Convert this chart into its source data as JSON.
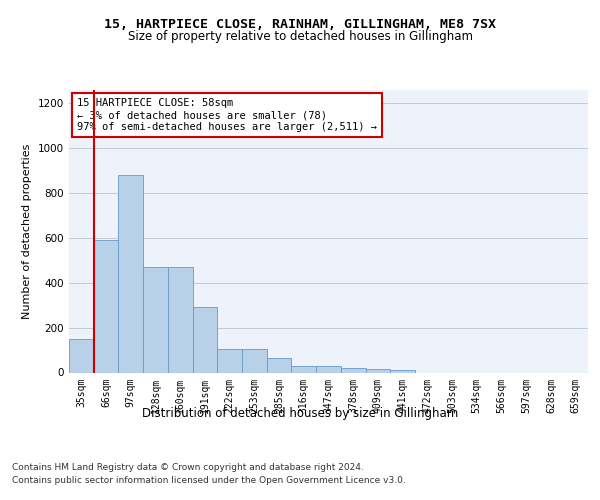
{
  "title1": "15, HARTPIECE CLOSE, RAINHAM, GILLINGHAM, ME8 7SX",
  "title2": "Size of property relative to detached houses in Gillingham",
  "xlabel": "Distribution of detached houses by size in Gillingham",
  "ylabel": "Number of detached properties",
  "categories": [
    "35sqm",
    "66sqm",
    "97sqm",
    "128sqm",
    "160sqm",
    "191sqm",
    "222sqm",
    "253sqm",
    "285sqm",
    "316sqm",
    "347sqm",
    "378sqm",
    "409sqm",
    "441sqm",
    "472sqm",
    "503sqm",
    "534sqm",
    "566sqm",
    "597sqm",
    "628sqm",
    "659sqm"
  ],
  "values": [
    150,
    590,
    880,
    470,
    470,
    290,
    105,
    105,
    63,
    30,
    30,
    20,
    15,
    12,
    0,
    0,
    0,
    0,
    0,
    0,
    0
  ],
  "bar_color": "#b8d0e8",
  "bar_edge_color": "#6699cc",
  "property_line_color": "#cc0000",
  "annotation_text": "15 HARTPIECE CLOSE: 58sqm\n← 3% of detached houses are smaller (78)\n97% of semi-detached houses are larger (2,511) →",
  "annotation_box_facecolor": "#ffffff",
  "annotation_box_edgecolor": "#cc0000",
  "ylim": [
    0,
    1260
  ],
  "yticks": [
    0,
    200,
    400,
    600,
    800,
    1000,
    1200
  ],
  "footer1": "Contains HM Land Registry data © Crown copyright and database right 2024.",
  "footer2": "Contains public sector information licensed under the Open Government Licence v3.0.",
  "plot_bg_color": "#eef2fa",
  "fig_bg_color": "#ffffff",
  "grid_color": "#c0c8d8",
  "title1_fontsize": 9.5,
  "title2_fontsize": 8.5,
  "ylabel_fontsize": 8,
  "xlabel_fontsize": 8.5,
  "tick_fontsize": 7,
  "ann_fontsize": 7.5,
  "footer_fontsize": 6.5
}
